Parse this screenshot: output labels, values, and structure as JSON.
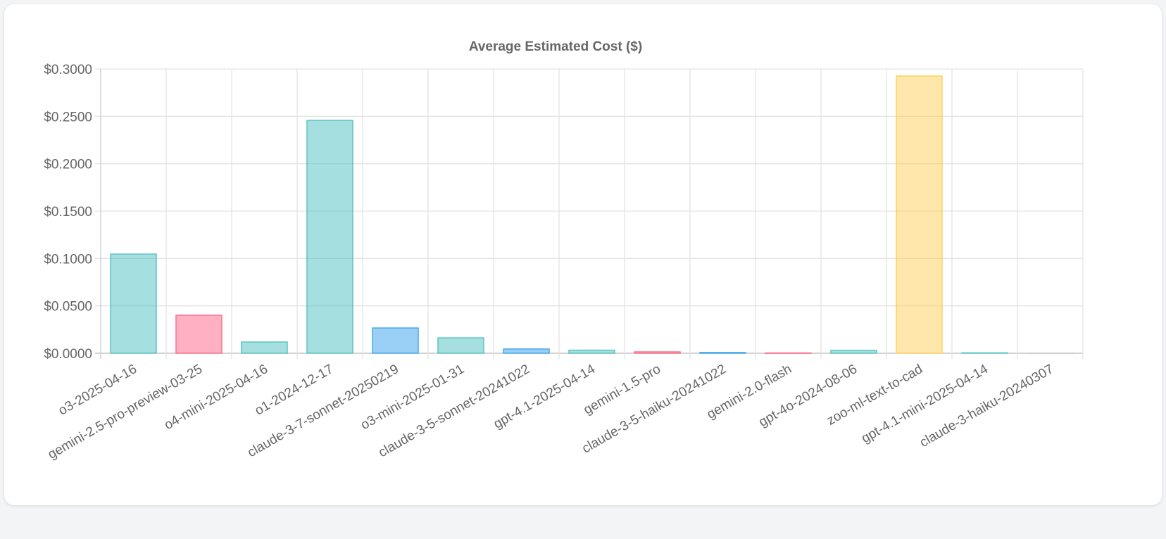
{
  "chart_data": {
    "type": "bar",
    "title": "Average Estimated Cost ($)",
    "xlabel": "",
    "ylabel": "",
    "ylim": [
      0,
      0.3
    ],
    "yticks": [
      "$0.0000",
      "$0.0500",
      "$0.1000",
      "$0.1500",
      "$0.2000",
      "$0.2500",
      "$0.3000"
    ],
    "ytick_values": [
      0,
      0.05,
      0.1,
      0.15,
      0.2,
      0.25,
      0.3
    ],
    "grid": true,
    "categories": [
      "o3-2025-04-16",
      "gemini-2.5-pro-preview-03-25",
      "o4-mini-2025-04-16",
      "o1-2024-12-17",
      "claude-3-7-sonnet-20250219",
      "o3-mini-2025-01-31",
      "claude-3-5-sonnet-20241022",
      "gpt-4.1-2025-04-14",
      "gemini-1.5-pro",
      "claude-3-5-haiku-20241022",
      "gemini-2.0-flash",
      "gpt-4o-2024-08-06",
      "zoo-ml-text-to-cad",
      "gpt-4.1-mini-2025-04-14",
      "claude-3-haiku-20240307"
    ],
    "values": [
      0.1047,
      0.0401,
      0.0119,
      0.2458,
      0.0267,
      0.0163,
      0.0045,
      0.0033,
      0.0015,
      0.0008,
      0.0003,
      0.0031,
      0.2926,
      0.0004,
      0.0001
    ],
    "colors": [
      "#4bc0c0",
      "#ff6384",
      "#4bc0c0",
      "#4bc0c0",
      "#36a2eb",
      "#4bc0c0",
      "#36a2eb",
      "#4bc0c0",
      "#ff6384",
      "#36a2eb",
      "#ff6384",
      "#4bc0c0",
      "#ffcd56",
      "#4bc0c0",
      "#c9cbcf"
    ]
  }
}
